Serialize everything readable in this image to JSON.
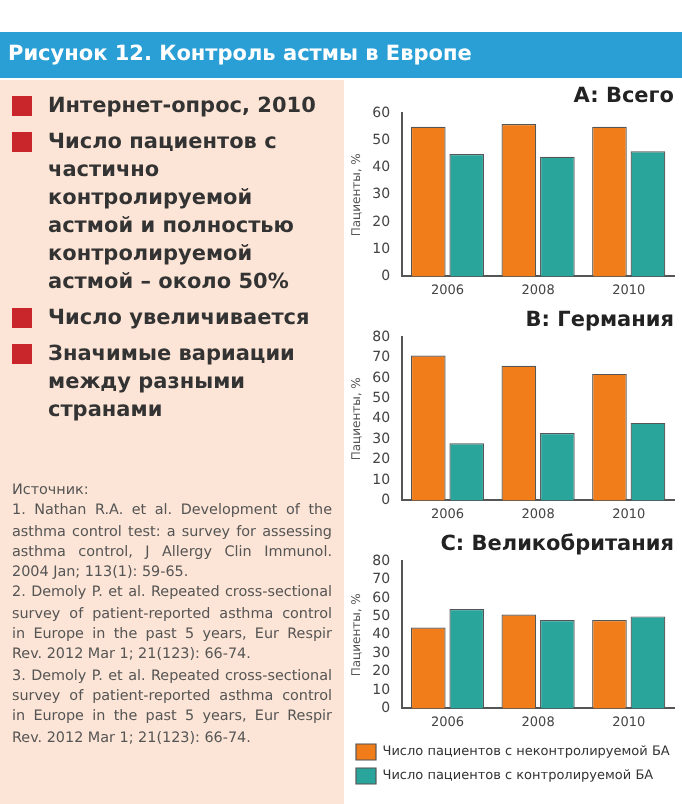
{
  "chart_data": [
    {
      "type": "other",
      "title": "Рисунок 12. Контроль астмы в Европе",
      "annotations": [
        "Интернет-опрос, 2010",
        "Число пациентов с частично контролируемой астмой и полностью контролируемой астмой – около 50%",
        "Число увеличивается",
        "Значимые вариации между разными странами",
        "Источник:\n1. Nathan R.A. et al. Development of the asthma control test: a survey for assessing asthma control, J Allergy Clin Immunol. 2004 Jan; 113(1): 59-65.\n2. Demoly P. et al. Repeated cross-sectional survey of patient-reported asthma control in Europe in the past 5 years, Eur Respir Rev. 2012 Mar 1; 21(123): 66-74.\n3. Demoly P. et al. Repeated cross-sectional survey of patient-reported asthma control in Europe in the past 5 years, Eur Respir Rev. 2012 Mar 1; 21(123): 66-74."
      ]
    },
    {
      "type": "bar",
      "title": "A: Всего",
      "ylabel": "Пациенты, %",
      "categories": [
        "2006",
        "2008",
        "2010"
      ],
      "ylim": [
        0,
        60
      ],
      "yticks": [
        0,
        10,
        20,
        30,
        40,
        50,
        60
      ],
      "series": [
        {
          "color": "#f07d1a",
          "values": [
            55,
            56,
            55
          ]
        },
        {
          "color": "#2aa59c",
          "values": [
            45,
            44,
            46
          ]
        }
      ]
    },
    {
      "type": "bar",
      "title": "B: Германия",
      "ylabel": "Пациенты, %",
      "categories": [
        "2006",
        "2008",
        "2010"
      ],
      "ylim": [
        0,
        80
      ],
      "yticks": [
        0,
        10,
        20,
        30,
        40,
        50,
        60,
        70,
        80
      ],
      "series": [
        {
          "color": "#f07d1a",
          "values": [
            71,
            66,
            62
          ]
        },
        {
          "color": "#2aa59c",
          "values": [
            28,
            33,
            38
          ]
        }
      ]
    },
    {
      "type": "bar",
      "title": "C: Великобритания",
      "ylabel": "Пациенты, %",
      "categories": [
        "2006",
        "2008",
        "2010"
      ],
      "ylim": [
        0,
        80
      ],
      "yticks": [
        0,
        10,
        20,
        30,
        40,
        50,
        60,
        70,
        80
      ],
      "legend": "bottom",
      "series": [
        {
          "name": "Число пациентов с неконтролируемой БА",
          "color": "#f07d1a",
          "values": [
            44,
            51,
            48
          ]
        },
        {
          "name": "Число пациентов с контролируемой БА",
          "color": "#2aa59c",
          "values": [
            54,
            48,
            50
          ]
        }
      ]
    }
  ]
}
